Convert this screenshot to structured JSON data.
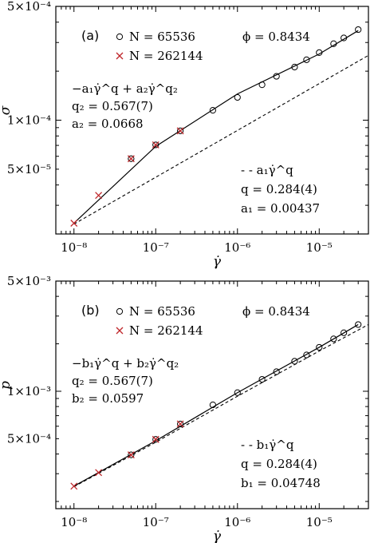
{
  "chart_data": [
    {
      "type": "scatter",
      "panel_label": "(a)",
      "xlabel": "γ̇",
      "ylabel": "σ",
      "log_x": true,
      "log_y": true,
      "xlim": [
        6e-09,
        4e-05
      ],
      "ylim": [
        2e-05,
        0.0005
      ],
      "x_ticks": [
        {
          "value": 1e-08,
          "label": "10⁻⁸"
        },
        {
          "value": 1e-07,
          "label": "10⁻⁷"
        },
        {
          "value": 1e-06,
          "label": "10⁻⁶"
        },
        {
          "value": 1e-05,
          "label": "10⁻⁵"
        }
      ],
      "y_ticks": [
        {
          "value": 5e-05,
          "label": "5×10⁻⁵"
        },
        {
          "value": 0.0001,
          "label": "1×10⁻⁴"
        },
        {
          "value": 0.0005,
          "label": "5×10⁻⁴"
        }
      ],
      "phi_label": "ϕ = 0.8434",
      "legend": [
        {
          "marker": "circle",
          "name": "N = 65536"
        },
        {
          "marker": "cross",
          "name": "N = 262144",
          "color": "#c0282c"
        }
      ],
      "series": [
        {
          "name": "N = 65536",
          "marker": "circle",
          "x": [
            5e-08,
            1e-07,
            2e-07,
            5e-07,
            1e-06,
            2e-06,
            3e-06,
            5e-06,
            7e-06,
            1e-05,
            1.5e-05,
            2e-05,
            3e-05
          ],
          "y": [
            5.8e-05,
            7.05e-05,
            8.6e-05,
            0.000115,
            0.000138,
            0.000165,
            0.000186,
            0.000212,
            0.000235,
            0.00026,
            0.000295,
            0.00032,
            0.00036
          ]
        },
        {
          "name": "N = 262144",
          "marker": "cross",
          "x": [
            1e-08,
            2e-08,
            5e-08,
            1e-07,
            2e-07
          ],
          "y": [
            2.33e-05,
            3.45e-05,
            5.8e-05,
            7.05e-05,
            8.6e-05
          ]
        }
      ],
      "fits": [
        {
          "style": "solid",
          "x_range": [
            1e-08,
            3e-05
          ],
          "points": [
            [
              1e-08,
              2.33e-05
            ],
            [
              1e-07,
              6.9e-05
            ],
            [
              1e-06,
              0.000145
            ],
            [
              1e-05,
              0.000255
            ],
            [
              3e-05,
              0.000355
            ]
          ],
          "text": [
            "−a₁γ̇^q + a₂γ̇^q₂",
            "q₂ = 0.567(7)",
            "a₂ = 0.0668"
          ]
        },
        {
          "style": "dashed",
          "x_range": [
            1e-08,
            4e-05
          ],
          "points": [
            [
              1e-08,
              2.3e-05
            ],
            [
              4e-05,
              0.00025
            ]
          ],
          "text": [
            "- - a₁γ̇^q",
            "q = 0.284(4)",
            "a₁ = 0.00437"
          ]
        }
      ]
    },
    {
      "type": "scatter",
      "panel_label": "(b)",
      "xlabel": "γ̇",
      "ylabel": "p",
      "log_x": true,
      "log_y": true,
      "xlim": [
        6e-09,
        4e-05
      ],
      "ylim": [
        0.00018,
        0.005
      ],
      "x_ticks": [
        {
          "value": 1e-08,
          "label": "10⁻⁸"
        },
        {
          "value": 1e-07,
          "label": "10⁻⁷"
        },
        {
          "value": 1e-06,
          "label": "10⁻⁶"
        },
        {
          "value": 1e-05,
          "label": "10⁻⁵"
        }
      ],
      "y_ticks": [
        {
          "value": 0.0005,
          "label": "5×10⁻⁴"
        },
        {
          "value": 0.001,
          "label": "1×10⁻³"
        },
        {
          "value": 0.005,
          "label": "5×10⁻³"
        }
      ],
      "phi_label": "ϕ = 0.8434",
      "legend": [
        {
          "marker": "circle",
          "name": "N = 65536"
        },
        {
          "marker": "cross",
          "name": "N = 262144",
          "color": "#c0282c"
        }
      ],
      "series": [
        {
          "name": "N = 65536",
          "marker": "circle",
          "x": [
            5e-08,
            1e-07,
            2e-07,
            5e-07,
            1e-06,
            2e-06,
            3e-06,
            5e-06,
            7e-06,
            1e-05,
            1.5e-05,
            2e-05,
            3e-05
          ],
          "y": [
            0.000395,
            0.000495,
            0.00062,
            0.00082,
            0.00098,
            0.00119,
            0.00133,
            0.00155,
            0.0017,
            0.0019,
            0.00215,
            0.00235,
            0.00265
          ]
        },
        {
          "name": "N = 262144",
          "marker": "cross",
          "x": [
            1e-08,
            2e-08,
            5e-08,
            1e-07,
            2e-07
          ],
          "y": [
            0.00025,
            0.000305,
            0.000395,
            0.000495,
            0.00062
          ]
        }
      ],
      "fits": [
        {
          "style": "solid",
          "x_range": [
            1e-08,
            3e-05
          ],
          "points": [
            [
              1e-08,
              0.00025
            ],
            [
              1e-07,
              0.000485
            ],
            [
              1e-06,
              0.00098
            ],
            [
              1e-05,
              0.0019
            ],
            [
              3e-05,
              0.00265
            ]
          ],
          "text": [
            "−b₁γ̇^q + b₂γ̇^q₂",
            "q₂ = 0.567(7)",
            "b₂ = 0.0597"
          ]
        },
        {
          "style": "dashed",
          "x_range": [
            1e-08,
            4e-05
          ],
          "points": [
            [
              1e-08,
              0.000248
            ],
            [
              1e-07,
              0.000475
            ],
            [
              1e-06,
              0.00093
            ],
            [
              1e-05,
              0.0018
            ],
            [
              4e-05,
              0.00265
            ]
          ],
          "text": [
            "- - b₁γ̇^q",
            "q = 0.284(4)",
            "b₁ = 0.04748"
          ]
        }
      ]
    }
  ]
}
